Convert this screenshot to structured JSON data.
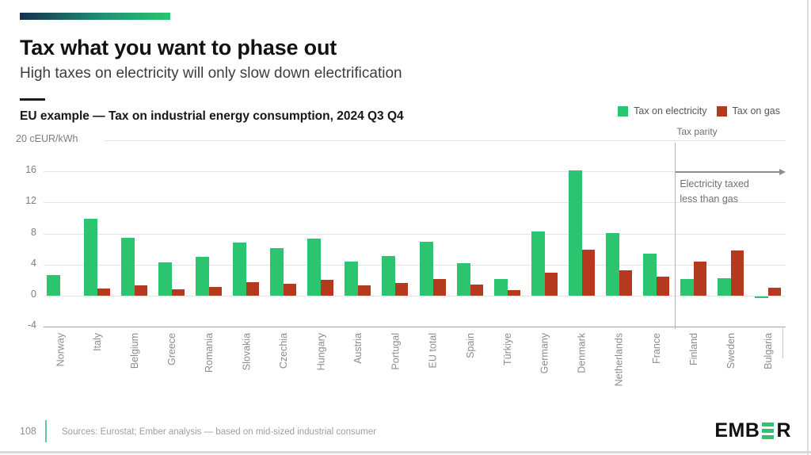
{
  "slide": {
    "title": "Tax what you want to phase out",
    "subtitle": "High taxes on electricity will only slow down electrification",
    "page_number": "108",
    "source_note": "Sources: Eurostat; Ember analysis — based on mid-sized industrial consumer",
    "logo": {
      "left": "EMB",
      "right": "R"
    }
  },
  "colors": {
    "electricity_green": "#2bc46f",
    "gas_red": "#b5391e",
    "brand_navy": "#16304d",
    "brand_teal_mid": "#1f9173",
    "divider_teal": "#5fc9ab"
  },
  "chart_data": {
    "type": "bar",
    "title": "EU example — Tax on industrial energy consumption, 2024 Q3 Q4",
    "unit": "cEUR/kWh",
    "ytick_top_label": "20 cEUR/kWh",
    "yticks": [
      20,
      16,
      12,
      8,
      4,
      0,
      -4
    ],
    "ylim": [
      -4,
      20
    ],
    "grid": true,
    "legend_position": "top-right",
    "categories": [
      "Norway",
      "Italy",
      "Belgium",
      "Greece",
      "Romania",
      "Slovakia",
      "Czechia",
      "Hungary",
      "Austria",
      "Portugal",
      "EU total",
      "Spain",
      "Türkiye",
      "Germany",
      "Denmark",
      "Netherlands",
      "France",
      "Finland",
      "Sweden",
      "Bulgaria"
    ],
    "series": [
      {
        "name": "Tax on electricity",
        "color": "#2bc46f",
        "values": [
          2.7,
          9.9,
          7.5,
          4.3,
          5.0,
          6.8,
          6.1,
          7.3,
          4.4,
          5.1,
          6.9,
          4.2,
          2.1,
          8.3,
          16.1,
          8.1,
          5.4,
          2.1,
          2.2,
          -0.2
        ]
      },
      {
        "name": "Tax on gas",
        "color": "#b5391e",
        "values": [
          0,
          0.9,
          1.3,
          0.8,
          1.1,
          1.7,
          1.5,
          2.0,
          1.3,
          1.6,
          2.1,
          1.4,
          0.7,
          3.0,
          5.9,
          3.3,
          2.5,
          4.4,
          5.8,
          1.0
        ]
      }
    ],
    "tax_parity": {
      "label": "Tax parity",
      "after_category": "France",
      "arrow_at_value": 16,
      "note": [
        "Electricity taxed",
        "less than gas"
      ]
    }
  }
}
